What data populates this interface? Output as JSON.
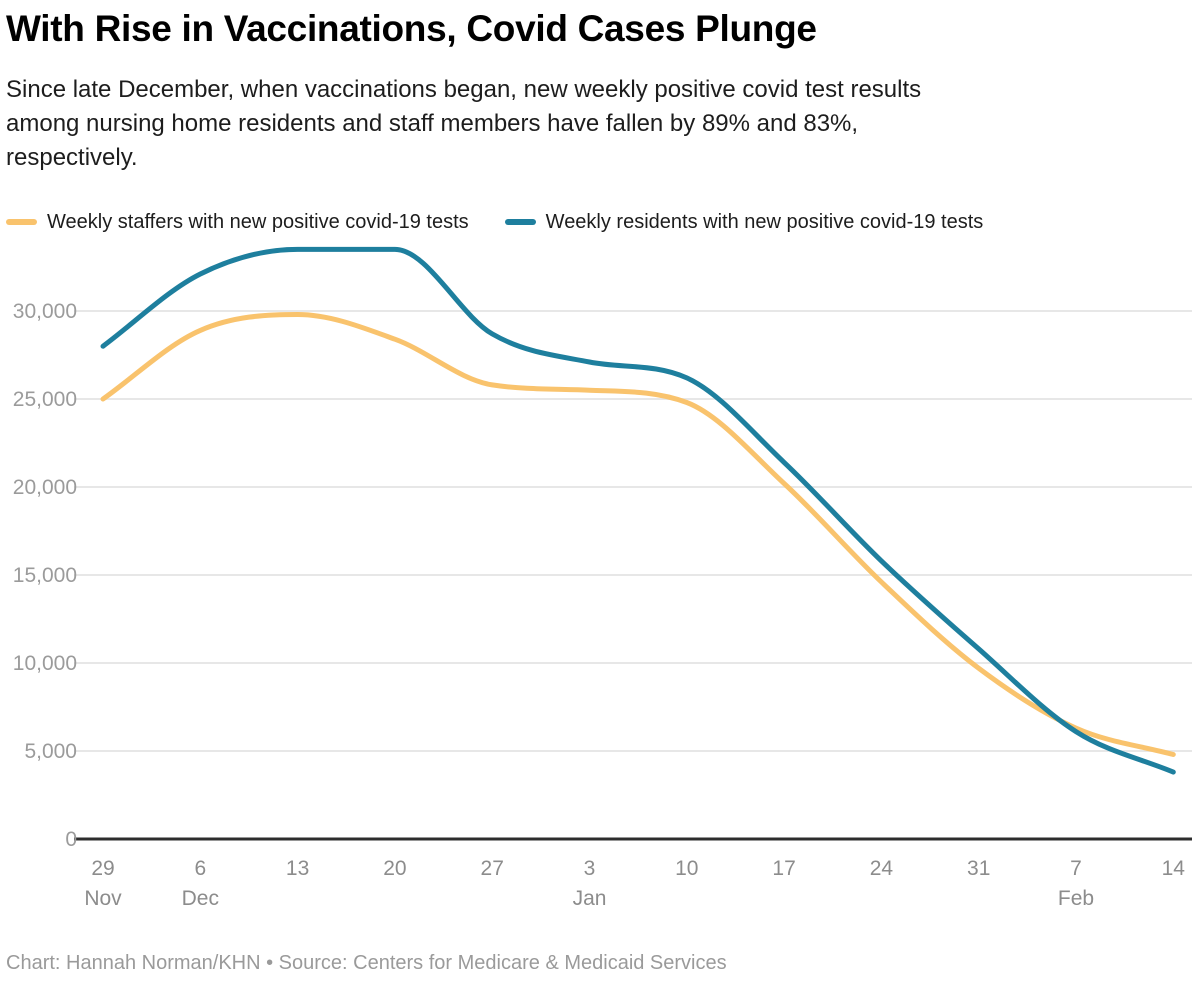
{
  "header": {
    "title": "With Rise in Vaccinations, Covid Cases Plunge",
    "subtitle": "Since late December, when vaccinations began, new weekly positive covid test results\namong nursing home residents and staff members have fallen by 89% and 83%,\nrespectively."
  },
  "legend": {
    "items": [
      {
        "label": "Weekly staffers with new positive covid-19 tests",
        "color": "#f9c36d"
      },
      {
        "label": "Weekly residents with new positive covid-19 tests",
        "color": "#1e7f9e"
      }
    ]
  },
  "chart_data": {
    "type": "line",
    "categories": [
      "Nov 29",
      "Dec 6",
      "Dec 13",
      "Dec 20",
      "Dec 27",
      "Jan 3",
      "Jan 10",
      "Jan 17",
      "Jan 24",
      "Jan 31",
      "Feb 7",
      "Feb 14"
    ],
    "x_tick_days": [
      "29",
      "6",
      "13",
      "20",
      "27",
      "3",
      "10",
      "17",
      "24",
      "31",
      "7",
      "14"
    ],
    "x_month_labels": [
      {
        "index": 0,
        "label": "Nov"
      },
      {
        "index": 1,
        "label": "Dec"
      },
      {
        "index": 5,
        "label": "Jan"
      },
      {
        "index": 10,
        "label": "Feb"
      }
    ],
    "series": [
      {
        "name": "Weekly staffers with new positive covid-19 tests",
        "color": "#f9c36d",
        "values": [
          25000,
          28900,
          29800,
          28400,
          25800,
          25500,
          24800,
          20200,
          14600,
          9700,
          6300,
          4800
        ]
      },
      {
        "name": "Weekly residents with new positive covid-19 tests",
        "color": "#1e7f9e",
        "values": [
          28000,
          32100,
          33500,
          33500,
          28700,
          27100,
          26200,
          21400,
          15800,
          10800,
          6100,
          3800
        ]
      }
    ],
    "y_ticks": [
      0,
      5000,
      10000,
      15000,
      20000,
      25000,
      30000
    ],
    "ylim": [
      0,
      34000
    ],
    "grid": true,
    "legend_position": "top",
    "colors": {
      "gridline": "#e7e7e7",
      "axis_line": "#2d2d2d",
      "y_tick_label": "#9b9b9b",
      "x_tick_label": "#8c8c8c"
    }
  },
  "footer": {
    "credit": "Chart: Hannah Norman/KHN • Source: Centers for Medicare & Medicaid Services"
  }
}
